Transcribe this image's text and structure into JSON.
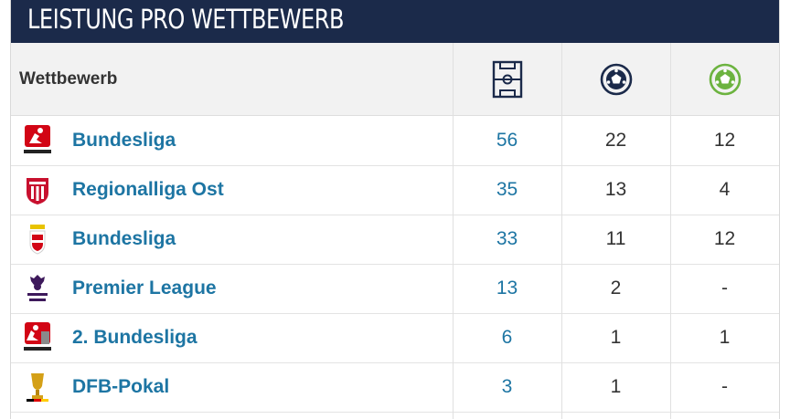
{
  "header": {
    "title": "LEISTUNG PRO WETTBEWERB"
  },
  "table": {
    "column_competition": "Wettbewerb",
    "column_icons": [
      "pitch-icon",
      "football-icon",
      "assist-ball-icon"
    ],
    "colors": {
      "header_bg": "#1b2a4a",
      "link": "#1d75a3",
      "assist_icon": "#6cb33f"
    },
    "rows": [
      {
        "competition": "Bundesliga",
        "logo": "bundesliga-logo",
        "apps": "56",
        "goals": "22",
        "assists": "12"
      },
      {
        "competition": "Regionalliga Ost",
        "logo": "regionalliga-ost-logo",
        "apps": "35",
        "goals": "13",
        "assists": "4"
      },
      {
        "competition": "Bundesliga",
        "logo": "austrian-bundesliga-logo",
        "apps": "33",
        "goals": "11",
        "assists": "12"
      },
      {
        "competition": "Premier League",
        "logo": "premier-league-logo",
        "apps": "13",
        "goals": "2",
        "assists": "-"
      },
      {
        "competition": "2. Bundesliga",
        "logo": "2-bundesliga-logo",
        "apps": "6",
        "goals": "1",
        "assists": "1"
      },
      {
        "competition": "DFB-Pokal",
        "logo": "dfb-pokal-logo",
        "apps": "3",
        "goals": "1",
        "assists": "-"
      }
    ]
  }
}
